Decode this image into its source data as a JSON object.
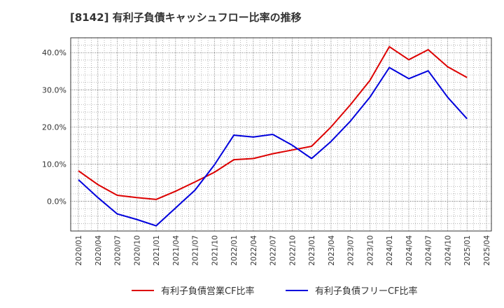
{
  "chart_data": {
    "type": "line",
    "title": "[8142]  有利子負債キャッシュフロー比率の推移",
    "xlabel": "",
    "ylabel": "",
    "x": [
      "2020/01",
      "2020/04",
      "2020/07",
      "2020/10",
      "2021/01",
      "2021/04",
      "2021/07",
      "2021/10",
      "2022/01",
      "2022/04",
      "2022/07",
      "2022/10",
      "2023/01",
      "2023/04",
      "2023/07",
      "2023/10",
      "2024/01",
      "2024/04",
      "2024/07",
      "2024/10",
      "2025/01",
      "2025/04"
    ],
    "y_ticks": [
      "0.0%",
      "10.0%",
      "20.0%",
      "30.0%",
      "40.0%"
    ],
    "ylim": [
      -8,
      44
    ],
    "grid": true,
    "legend_position": "bottom",
    "series": [
      {
        "name": "有利子負債営業CF比率",
        "color": "#dd0000",
        "values": [
          8.2,
          4.5,
          1.6,
          1.0,
          0.5,
          2.7,
          5.2,
          7.8,
          11.2,
          11.5,
          12.8,
          13.8,
          14.8,
          20.0,
          26.0,
          32.5,
          41.6,
          38.1,
          40.8,
          36.2,
          33.3,
          null
        ]
      },
      {
        "name": "有利子負債フリーCF比率",
        "color": "#0000dd",
        "values": [
          5.8,
          1.0,
          -3.4,
          -4.9,
          -6.6,
          -1.8,
          3.0,
          9.8,
          17.8,
          17.3,
          18.0,
          15.1,
          11.5,
          16.1,
          21.6,
          28.0,
          36.0,
          33.0,
          35.1,
          28.0,
          22.2,
          null
        ]
      }
    ]
  }
}
